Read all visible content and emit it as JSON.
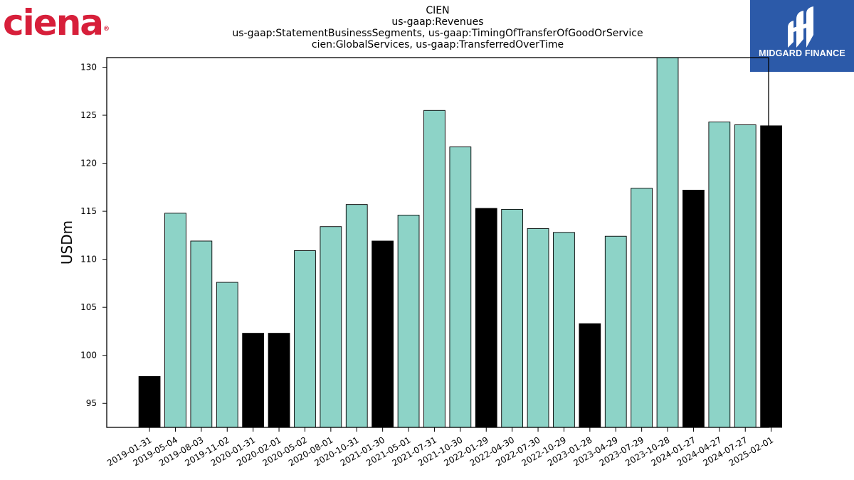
{
  "logos": {
    "left": {
      "text": "ciena",
      "mark": "®",
      "color": "#d71f3a"
    },
    "right": {
      "text": "MIDGARD FINANCE",
      "background": "#2c5aa9"
    }
  },
  "chart_data": {
    "type": "bar",
    "title": [
      "CIEN",
      "us-gaap:Revenues",
      "us-gaap:StatementBusinessSegments, us-gaap:TimingOfTransferOfGoodOrService",
      "cien:GlobalServices, us-gaap:TransferredOverTime"
    ],
    "xlabel": "",
    "ylabel": "USDm",
    "ylim": [
      92.5,
      131
    ],
    "yticks": [
      95,
      100,
      105,
      110,
      115,
      120,
      125,
      130
    ],
    "grid": false,
    "colors": {
      "teal": "#8dd3c7",
      "black": "#000000"
    },
    "categories": [
      "2019-01-31",
      "2019-05-04",
      "2019-08-03",
      "2019-11-02",
      "2020-01-31",
      "2020-02-01",
      "2020-05-02",
      "2020-08-01",
      "2020-10-31",
      "2021-01-30",
      "2021-05-01",
      "2021-07-31",
      "2021-10-30",
      "2022-01-29",
      "2022-04-30",
      "2022-07-30",
      "2022-10-29",
      "2023-01-28",
      "2023-04-29",
      "2023-07-29",
      "2023-10-28",
      "2024-01-27",
      "2024-04-27",
      "2024-07-27",
      "2025-02-01"
    ],
    "values": [
      97.8,
      114.8,
      111.9,
      107.6,
      102.3,
      102.3,
      110.9,
      113.4,
      115.7,
      111.9,
      114.6,
      125.5,
      121.7,
      115.3,
      115.2,
      113.2,
      112.8,
      103.3,
      112.4,
      117.4,
      131.0,
      117.2,
      124.3,
      124.0,
      123.9
    ],
    "bar_colors": [
      "black",
      "teal",
      "teal",
      "teal",
      "black",
      "black",
      "teal",
      "teal",
      "teal",
      "black",
      "teal",
      "teal",
      "teal",
      "black",
      "teal",
      "teal",
      "teal",
      "black",
      "teal",
      "teal",
      "teal",
      "black",
      "teal",
      "teal",
      "black"
    ]
  }
}
